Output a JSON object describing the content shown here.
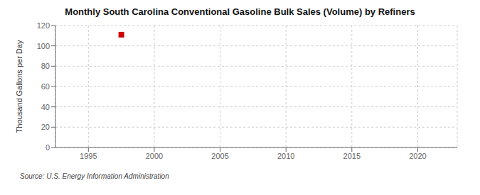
{
  "chart_data": {
    "type": "scatter",
    "title": "Monthly South Carolina Conventional Gasoline Bulk Sales (Volume) by Refiners",
    "ylabel": "Thousand Gallons per Day",
    "source": "Source: U.S. Energy Information Administration",
    "x": [
      1997.5
    ],
    "values": [
      111
    ],
    "color": "#cc0000",
    "marker": "square",
    "xlim": [
      1992.5,
      2023
    ],
    "ylim": [
      0,
      120
    ],
    "xticks": [
      1995,
      2000,
      2005,
      2010,
      2015,
      2020
    ],
    "yticks": [
      0,
      20,
      40,
      60,
      80,
      100,
      120
    ],
    "grid": true
  }
}
